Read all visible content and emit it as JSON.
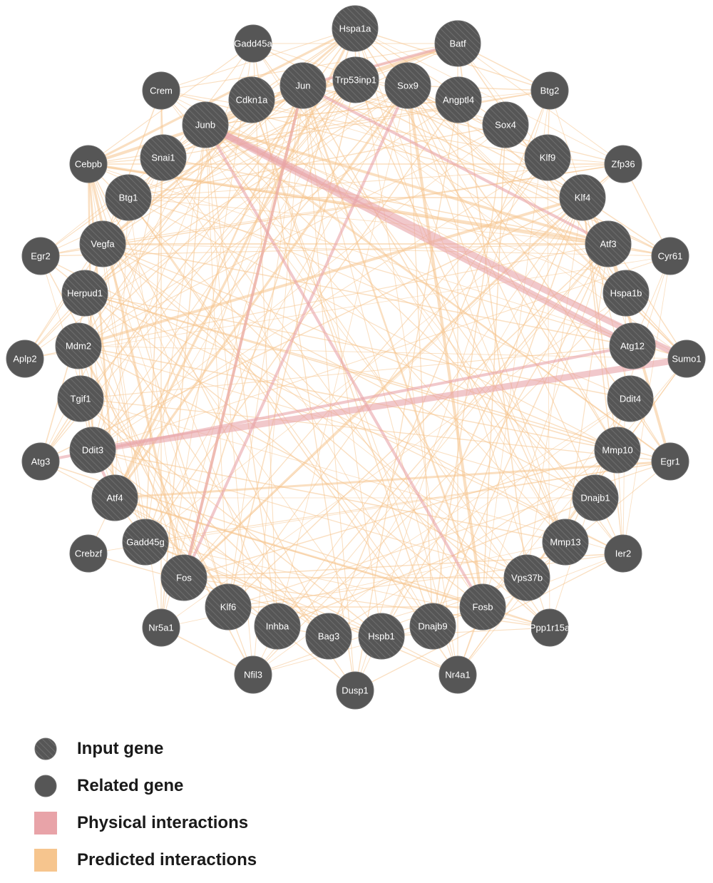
{
  "colors": {
    "node": "#565656",
    "node_border": "#6b6b6b",
    "hatch": "#7a7a7a",
    "physical": "#e8a3a8",
    "predicted": "#f6c58e",
    "label": "#ffffff"
  },
  "network": {
    "input_genes": [
      "Hspa1a",
      "Batf",
      "Trp53inp1",
      "Jun",
      "Sox9",
      "Angptl4",
      "Cdkn1a",
      "Junb",
      "Sox4",
      "Klf9",
      "Snai1",
      "Btg1",
      "Klf4",
      "Vegfa",
      "Atf3",
      "Herpud1",
      "Hspa1b",
      "Mdm2",
      "Atg12",
      "Tgif1",
      "Ddit4",
      "Ddit3",
      "Mmp10",
      "Atf4",
      "Dnajb1",
      "Gadd45g",
      "Mmp13",
      "Fos",
      "Vps37b",
      "Klf6",
      "Fosb",
      "Inhba",
      "Dnajb9",
      "Bag3",
      "Hspb1"
    ],
    "related_genes": [
      "Gadd45a",
      "Crem",
      "Btg2",
      "Cebpb",
      "Zfp36",
      "Egr2",
      "Cyr61",
      "Aplp2",
      "Sumo1",
      "Atg3",
      "Egr1",
      "Crebzf",
      "Ier2",
      "Nr5a1",
      "Ppp1r15a",
      "Nfil3",
      "Nr4a1",
      "Dusp1"
    ],
    "physical_interactions": [
      [
        "Junb",
        "Atg12"
      ],
      [
        "Junb",
        "Sumo1"
      ],
      [
        "Ddit3",
        "Sumo1"
      ],
      [
        "Atg3",
        "Atg12"
      ],
      [
        "Sox9",
        "Fos"
      ],
      [
        "Batf",
        "Jun"
      ],
      [
        "Junb",
        "Fosb"
      ],
      [
        "Atf4",
        "Ddit3"
      ],
      [
        "Jun",
        "Fos"
      ],
      [
        "Atf3",
        "Jun"
      ]
    ],
    "predicted_interactions_visible": true
  },
  "legend": [
    {
      "type": "input",
      "label": "Input gene"
    },
    {
      "type": "related",
      "label": "Related gene"
    },
    {
      "type": "physical",
      "label": "Physical interactions"
    },
    {
      "type": "predicted",
      "label": "Predicted interactions"
    }
  ]
}
